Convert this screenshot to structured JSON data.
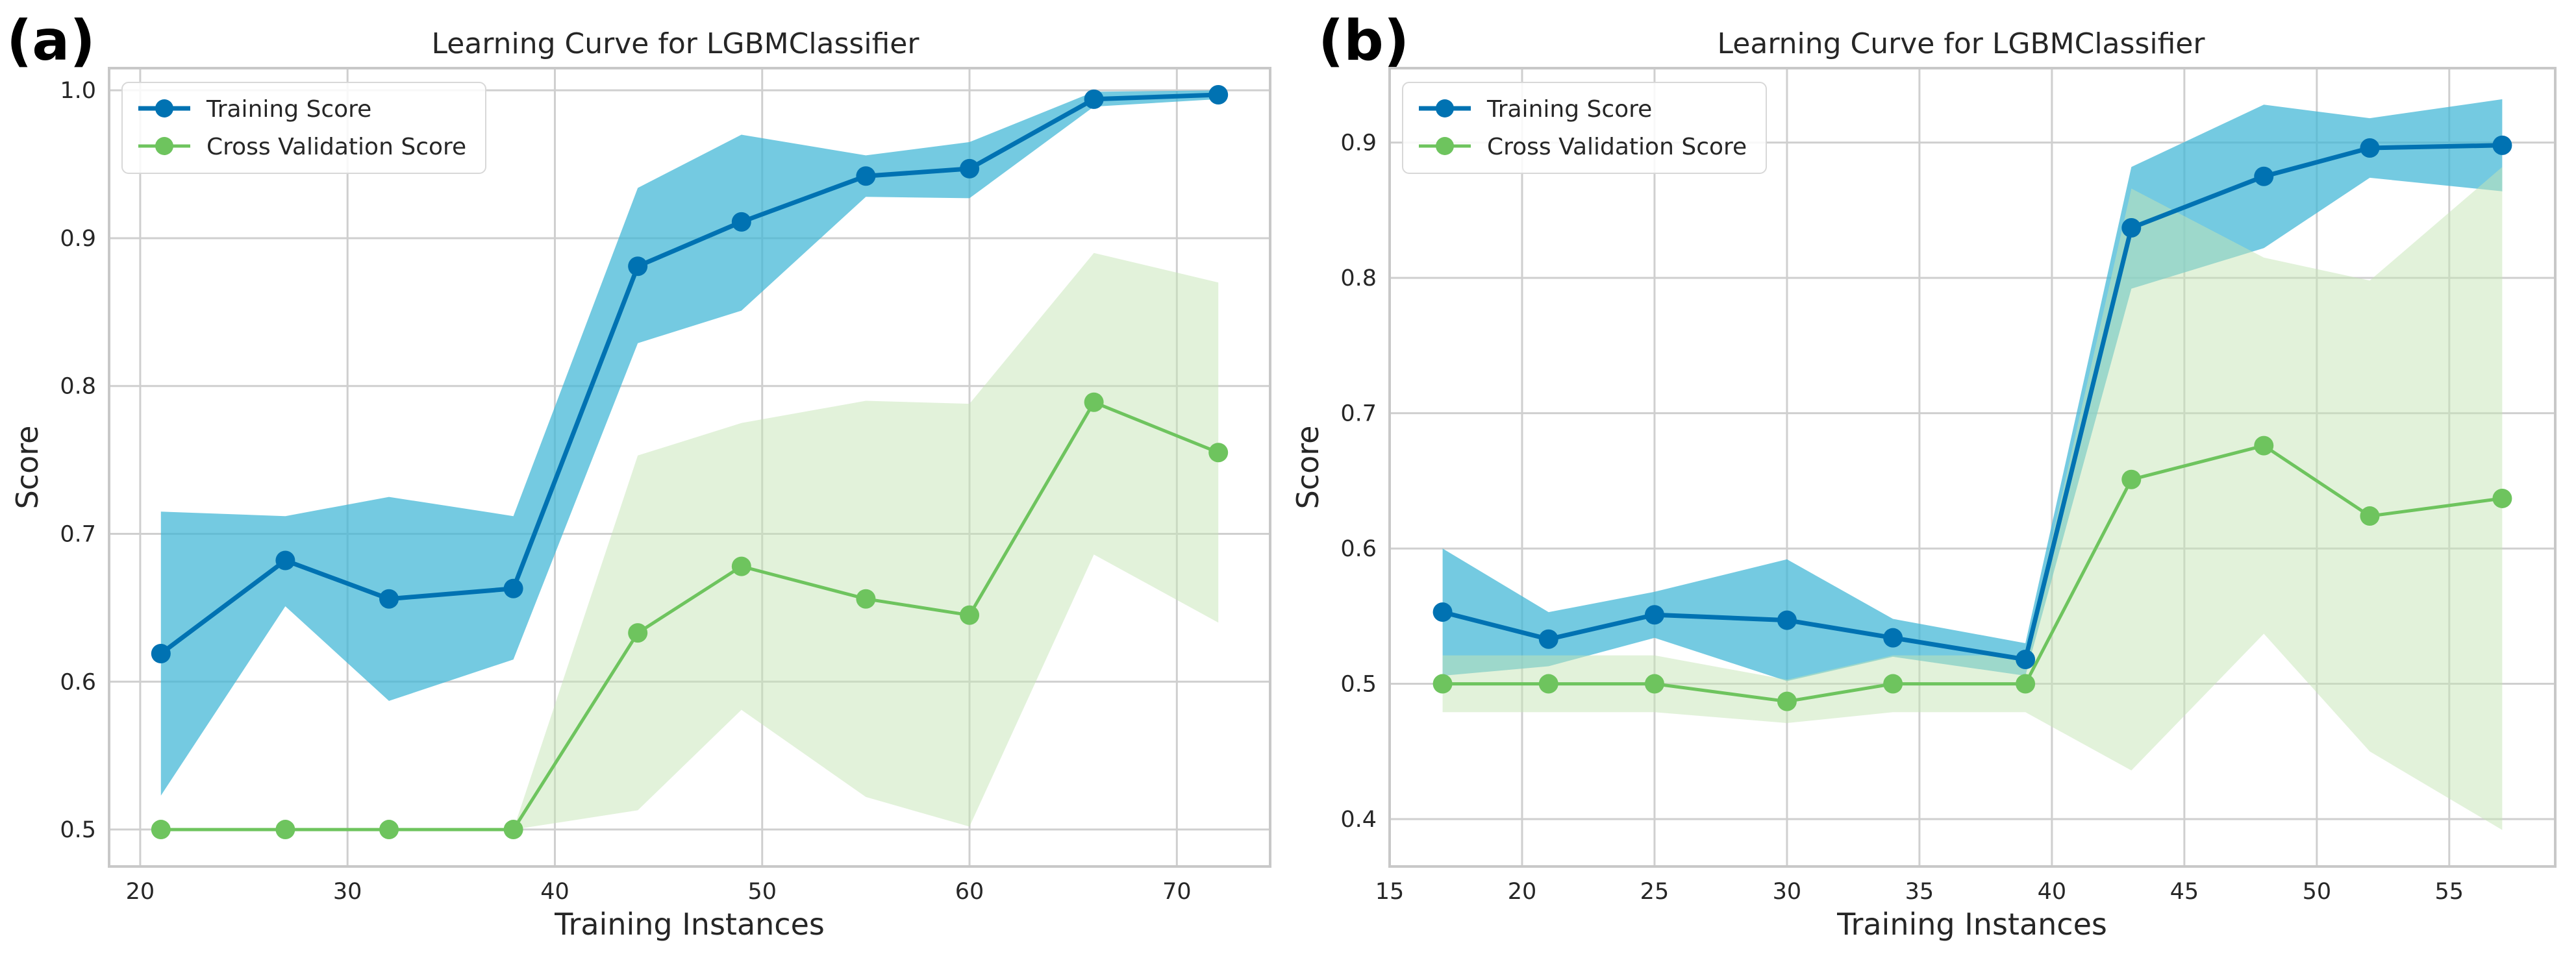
{
  "chart_data": [
    {
      "type": "line",
      "panel_label": "(a)",
      "title": "Learning Curve for LGBMClassifier",
      "xlabel": "Training Instances",
      "ylabel": "Score",
      "xlim": [
        18.5,
        74.5
      ],
      "ylim": [
        0.475,
        1.015
      ],
      "xticks": [
        20,
        30,
        40,
        50,
        60,
        70
      ],
      "xtick_labels": [
        "20",
        "30",
        "40",
        "50",
        "60",
        "70"
      ],
      "yticks": [
        0.5,
        0.6,
        0.7,
        0.8,
        0.9,
        1.0
      ],
      "ytick_labels": [
        "0.5",
        "0.6",
        "0.7",
        "0.8",
        "0.9",
        "1.0"
      ],
      "grid": true,
      "legend_position": "top-left",
      "x": [
        21,
        27,
        32,
        38,
        44,
        49,
        55,
        60,
        66,
        72
      ],
      "series": [
        {
          "name": "Training Score",
          "color": "#0072b2",
          "band_color": "#3eb6d6",
          "values": [
            0.619,
            0.682,
            0.656,
            0.663,
            0.881,
            0.911,
            0.942,
            0.947,
            0.994,
            0.997
          ],
          "upper": [
            0.715,
            0.712,
            0.725,
            0.712,
            0.934,
            0.97,
            0.956,
            0.965,
            0.999,
            1.0
          ],
          "lower": [
            0.523,
            0.651,
            0.587,
            0.615,
            0.829,
            0.851,
            0.928,
            0.927,
            0.989,
            0.994
          ]
        },
        {
          "name": "Cross Validation Score",
          "color": "#6ec45e",
          "band_color": "#c5e5b5",
          "values": [
            0.5,
            0.5,
            0.5,
            0.5,
            0.633,
            0.678,
            0.656,
            0.645,
            0.789,
            0.755
          ],
          "upper": [
            0.5,
            0.5,
            0.5,
            0.5,
            0.753,
            0.775,
            0.79,
            0.788,
            0.89,
            0.87
          ],
          "lower": [
            0.5,
            0.5,
            0.5,
            0.5,
            0.513,
            0.581,
            0.522,
            0.502,
            0.686,
            0.64
          ]
        }
      ]
    },
    {
      "type": "line",
      "panel_label": "(b)",
      "title": "Learning Curve for LGBMClassifier",
      "xlabel": "Training Instances",
      "ylabel": "Score",
      "xlim": [
        15,
        59
      ],
      "ylim": [
        0.365,
        0.955
      ],
      "xticks": [
        15,
        20,
        25,
        30,
        35,
        40,
        45,
        50,
        55
      ],
      "xtick_labels": [
        "15",
        "20",
        "25",
        "30",
        "35",
        "40",
        "45",
        "50",
        "55"
      ],
      "yticks": [
        0.4,
        0.5,
        0.6,
        0.7,
        0.8,
        0.9
      ],
      "ytick_labels": [
        "0.4",
        "0.5",
        "0.6",
        "0.7",
        "0.8",
        "0.9"
      ],
      "grid": true,
      "legend_position": "top-left",
      "x": [
        17,
        21,
        25,
        30,
        34,
        39,
        43,
        48,
        52,
        57
      ],
      "series": [
        {
          "name": "Training Score",
          "color": "#0072b2",
          "band_color": "#3eb6d6",
          "values": [
            0.553,
            0.533,
            0.551,
            0.547,
            0.534,
            0.518,
            0.837,
            0.875,
            0.896,
            0.898
          ],
          "upper": [
            0.6,
            0.553,
            0.568,
            0.592,
            0.548,
            0.53,
            0.882,
            0.928,
            0.918,
            0.932
          ],
          "lower": [
            0.506,
            0.513,
            0.534,
            0.502,
            0.52,
            0.506,
            0.792,
            0.822,
            0.874,
            0.864
          ]
        },
        {
          "name": "Cross Validation Score",
          "color": "#6ec45e",
          "band_color": "#c5e5b5",
          "values": [
            0.5,
            0.5,
            0.5,
            0.487,
            0.5,
            0.5,
            0.651,
            0.676,
            0.624,
            0.637
          ],
          "upper": [
            0.521,
            0.521,
            0.521,
            0.503,
            0.521,
            0.521,
            0.866,
            0.815,
            0.798,
            0.882
          ],
          "lower": [
            0.479,
            0.479,
            0.479,
            0.471,
            0.479,
            0.479,
            0.436,
            0.537,
            0.45,
            0.392
          ]
        }
      ]
    }
  ]
}
